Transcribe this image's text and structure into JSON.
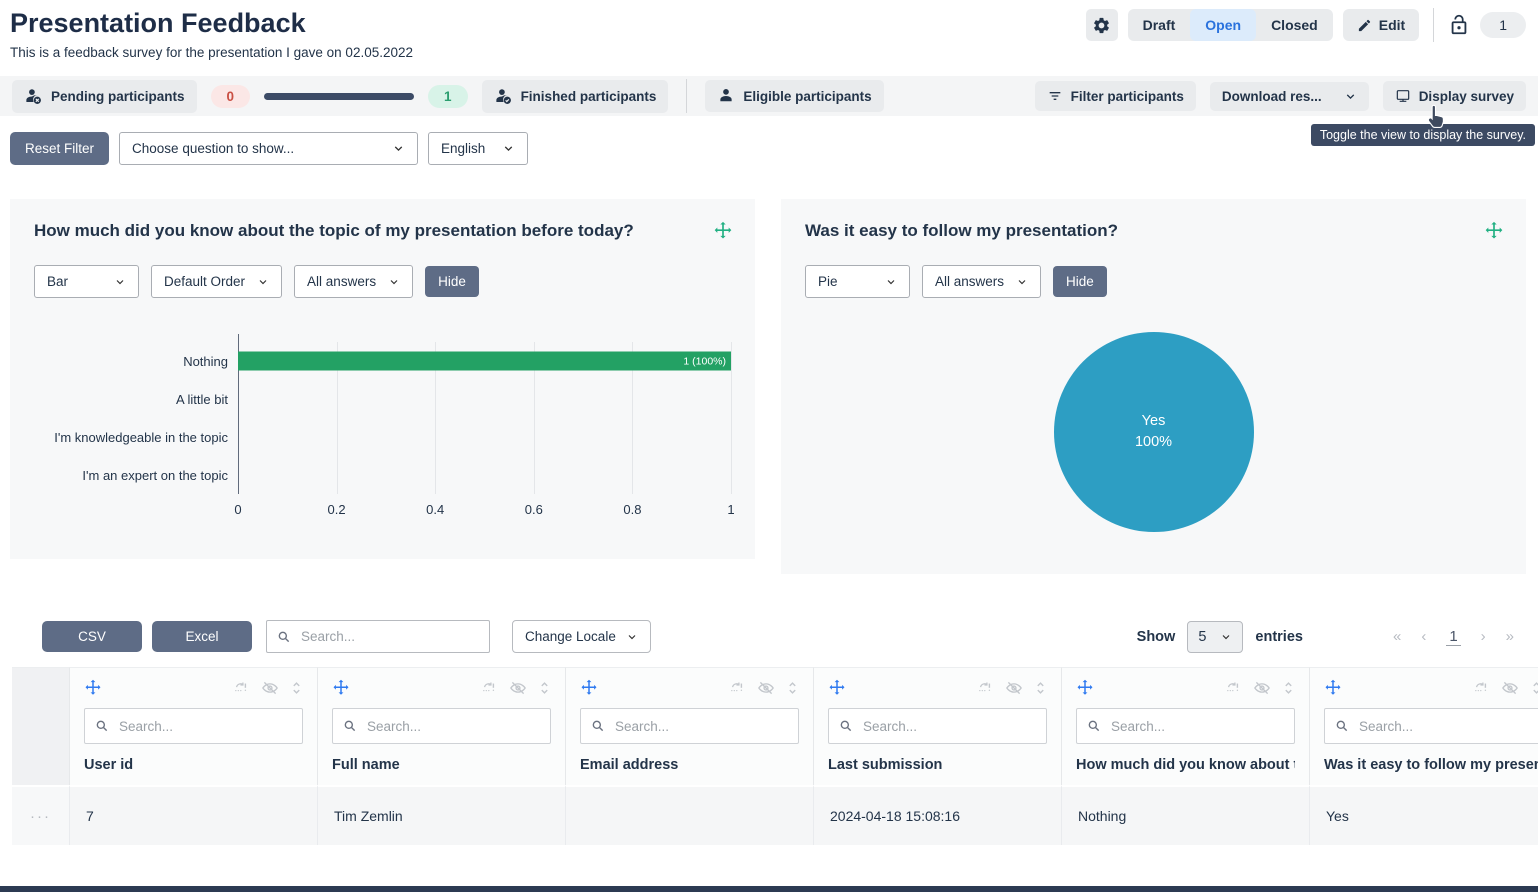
{
  "colors": {
    "navy": "#233449",
    "accent_blue": "#2a72dd",
    "accent_blue_bg": "#dcebfb",
    "slate": "#5e6c86",
    "bar_green": "#23a164",
    "pie_blue": "#2d9ec3",
    "move_green": "#21b083",
    "move_blue": "#2f7af0",
    "red": "#c94f43",
    "red_bg": "#fbe7e6",
    "green": "#2b9e6f",
    "green_bg": "#d8f3e8",
    "progress": "#3c4b66",
    "tooltip": "#3c4a63",
    "toolbar_bg": "#f4f5f6",
    "card_bg": "#f7f8f9",
    "btn_gray": "#e9ebed",
    "row_bg": "#f5f6f7"
  },
  "icons": {
    "gear-icon": "settings gear",
    "pencil-icon": "edit pencil",
    "unlock-icon": "open padlock",
    "person-x-icon": "person with x badge",
    "person-check-icon": "person with check badge",
    "person-icon": "person",
    "filter-icon": "filter lines",
    "chevron-down-icon": "chevron down",
    "display-icon": "comment bubble",
    "move-icon": "four-arrow drag cross",
    "refresh-alert-icon": "reload with exclamation",
    "eye-slash-icon": "hidden eye",
    "sort-icon": "up-down chevrons",
    "search-icon": "magnifier",
    "hand-cursor": "pointing hand",
    "first-page-icon": "«",
    "prev-page-icon": "‹",
    "next-page-icon": "›",
    "last-page-icon": "»",
    "row-menu-icon": "···"
  },
  "header": {
    "title": "Presentation Feedback",
    "subtitle": "This is a feedback survey for the presentation I gave on 02.05.2022",
    "status_tabs": [
      "Draft",
      "Open",
      "Closed"
    ],
    "active_status": "Open",
    "edit_label": "Edit",
    "response_count_badge": "1"
  },
  "participants_bar": {
    "pending_label": "Pending participants",
    "pending_count": "0",
    "finished_count": "1",
    "finished_label": "Finished participants",
    "eligible_label": "Eligible participants",
    "filter_label": "Filter participants",
    "download_label": "Download res...",
    "display_label": "Display survey",
    "tooltip": "Toggle the view to display the survey."
  },
  "filter_row": {
    "reset_label": "Reset Filter",
    "question_select": "Choose question to show...",
    "language_select": "English"
  },
  "chart_data": [
    {
      "type": "bar",
      "title": "How much did you know about the topic of my presentation before today?",
      "categories": [
        "Nothing",
        "A little bit",
        "I'm knowledgeable in the topic",
        "I'm an expert on the topic"
      ],
      "values": [
        1,
        0,
        0,
        0
      ],
      "bar_labels": [
        "1 (100%)",
        "",
        "",
        ""
      ],
      "x_ticks": [
        "0",
        "0.2",
        "0.4",
        "0.6",
        "0.8",
        "1"
      ],
      "xlim": [
        0,
        1
      ],
      "grid": "vertical light gridlines",
      "controls": {
        "chart_type": "Bar",
        "order": "Default Order",
        "answers": "All answers",
        "hide_label": "Hide"
      }
    },
    {
      "type": "pie",
      "title": "Was it easy to follow my presentation?",
      "labels": [
        "Yes"
      ],
      "values": [
        1
      ],
      "percents": [
        100
      ],
      "center_label": "Yes",
      "center_percent": "100%",
      "controls": {
        "chart_type": "Pie",
        "answers": "All answers",
        "hide_label": "Hide"
      }
    }
  ],
  "table": {
    "csv_label": "CSV",
    "excel_label": "Excel",
    "search_placeholder": "Search...",
    "locale_label": "Change Locale",
    "show_label": "Show",
    "page_size": "5",
    "entries_label": "entries",
    "pagination": {
      "first": "«",
      "prev": "‹",
      "current_page": "1",
      "next": "›",
      "last": "»"
    },
    "column_search_placeholder": "Search...",
    "row_menu": "···",
    "columns": [
      "User id",
      "Full name",
      "Email address",
      "Last submission",
      "How much did you know about the topic of my presentation before today?",
      "Was it easy to follow my presentation?"
    ],
    "rows": [
      [
        "7",
        "Tim Zemlin",
        "",
        "2024-04-18 15:08:16",
        "Nothing",
        "Yes"
      ]
    ]
  }
}
